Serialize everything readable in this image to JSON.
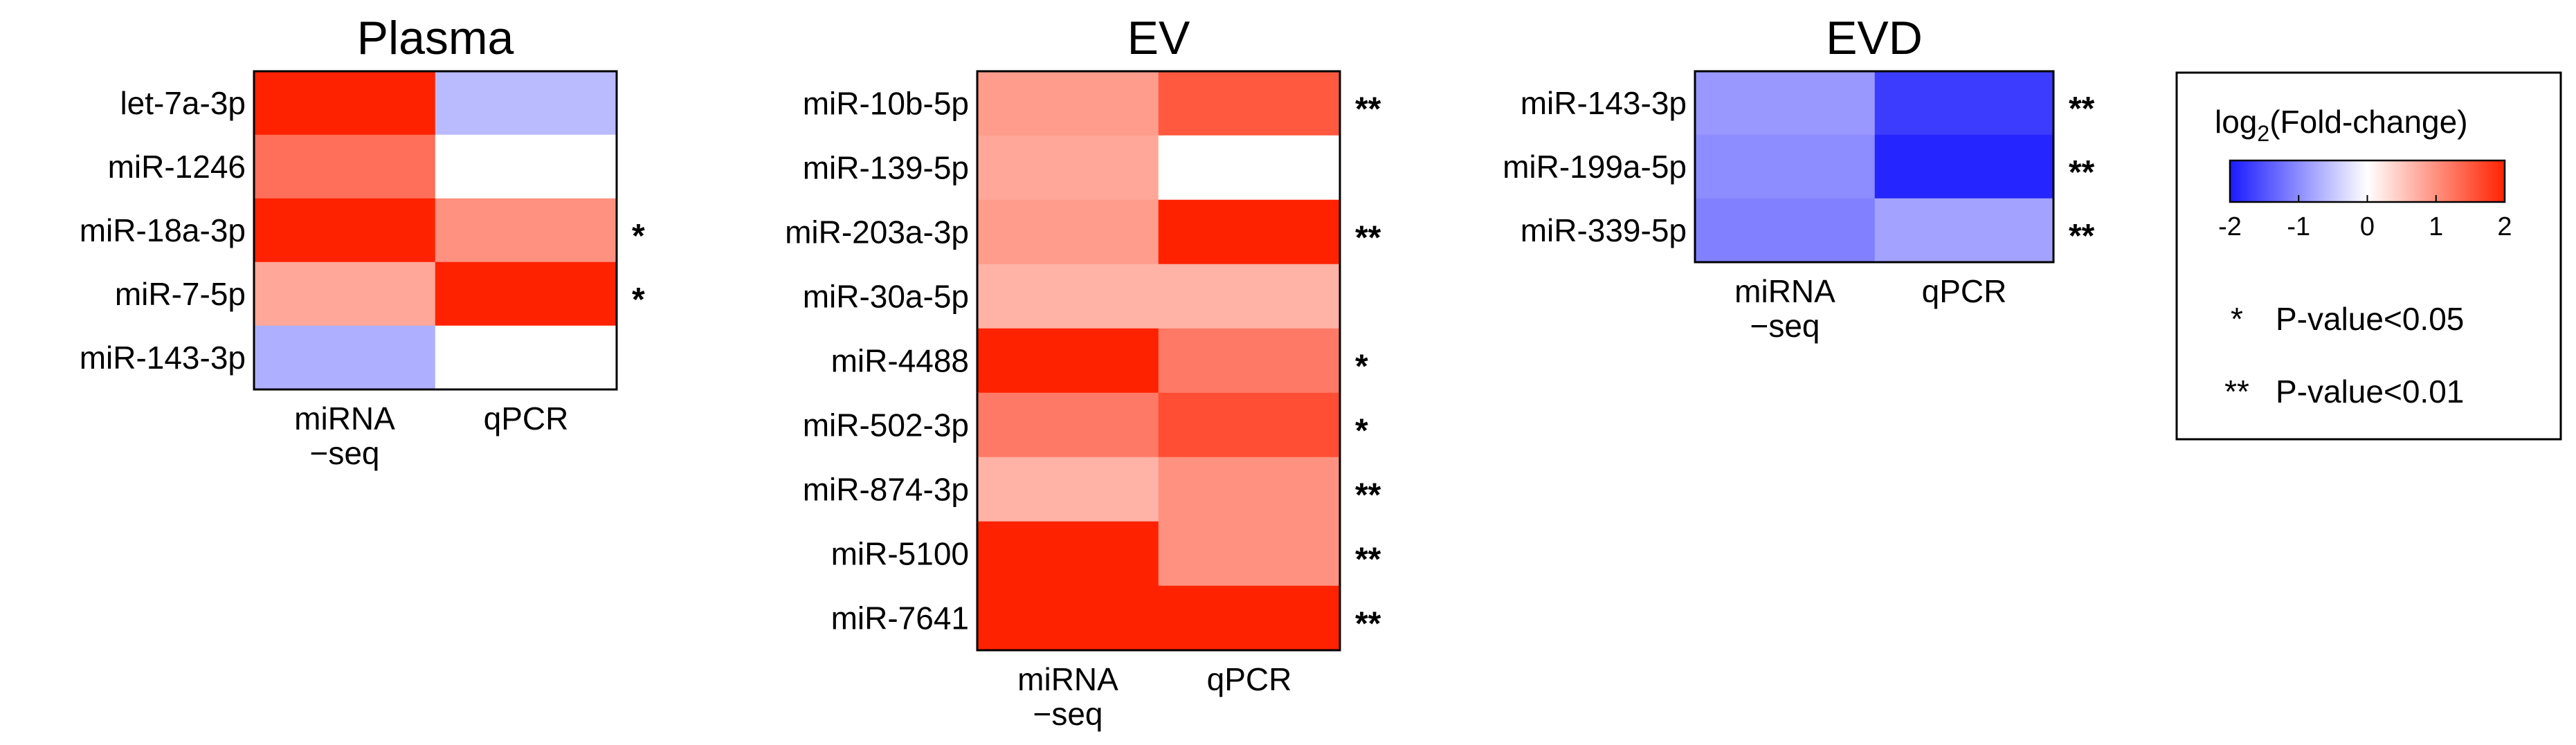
{
  "chart_data": [
    {
      "type": "heatmap",
      "title": "Plasma",
      "rows": [
        "let-7a-3p",
        "miR-1246",
        "miR-18a-3p",
        "miR-7-5p",
        "miR-143-3p"
      ],
      "columns": [
        [
          "miRNA",
          "−seq"
        ],
        [
          "qPCR"
        ]
      ],
      "values": [
        [
          2.0,
          -0.6
        ],
        [
          1.3,
          0.0
        ],
        [
          2.0,
          1.0
        ],
        [
          0.8,
          2.0
        ],
        [
          -0.7,
          0.0
        ]
      ],
      "significance": [
        "",
        "",
        "*",
        "*",
        ""
      ]
    },
    {
      "type": "heatmap",
      "title": "EV",
      "rows": [
        "miR-10b-5p",
        "miR-139-5p",
        "miR-203a-3p",
        "miR-30a-5p",
        "miR-4488",
        "miR-502-3p",
        "miR-874-3p",
        "miR-5100",
        "miR-7641"
      ],
      "columns": [
        [
          "miRNA",
          "−seq"
        ],
        [
          "qPCR"
        ]
      ],
      "values": [
        [
          0.9,
          1.5
        ],
        [
          0.8,
          0.0
        ],
        [
          0.9,
          2.0
        ],
        [
          0.7,
          0.7
        ],
        [
          2.0,
          1.2
        ],
        [
          1.2,
          1.6
        ],
        [
          0.7,
          1.0
        ],
        [
          2.0,
          1.0
        ],
        [
          2.0,
          2.0
        ]
      ],
      "significance": [
        "**",
        "",
        "**",
        "",
        "*",
        "*",
        "**",
        "**",
        "**"
      ]
    },
    {
      "type": "heatmap",
      "title": "EVD",
      "rows": [
        "miR-143-3p",
        "miR-199a-5p",
        "miR-339-5p"
      ],
      "columns": [
        [
          "miRNA",
          "−seq"
        ],
        [
          "qPCR"
        ]
      ],
      "values": [
        [
          -0.9,
          -1.7
        ],
        [
          -1.0,
          -1.9
        ],
        [
          -1.1,
          -0.8
        ]
      ],
      "significance": [
        "**",
        "**",
        "**"
      ]
    }
  ],
  "legend": {
    "title_main": "log",
    "title_sub": "2",
    "title_rest": "(Fold-change)",
    "colorbar_range": [
      -2,
      2
    ],
    "ticks": [
      "-2",
      "-1",
      "0",
      "1",
      "2"
    ],
    "colors": {
      "low": "#1a1aff",
      "mid": "#ffffff",
      "high": "#ff2200"
    },
    "entries": [
      {
        "symbol": "*",
        "label": "P-value<0.05"
      },
      {
        "symbol": "**",
        "label": "P-value<0.01"
      }
    ]
  }
}
